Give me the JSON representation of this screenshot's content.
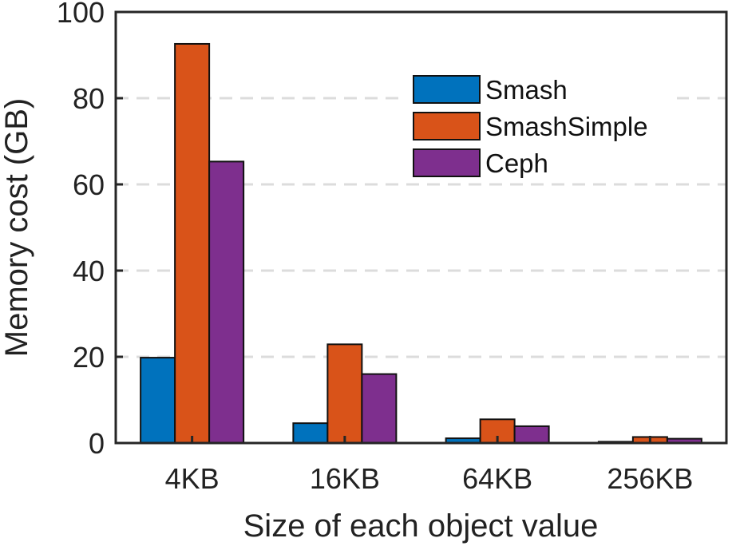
{
  "chart_data": {
    "type": "bar",
    "title": "",
    "xlabel": "Size of each object value",
    "ylabel": "Memory cost (GB)",
    "categories": [
      "4KB",
      "16KB",
      "64KB",
      "256KB"
    ],
    "ylim": [
      0,
      100
    ],
    "yticks": [
      0,
      20,
      40,
      60,
      80,
      100
    ],
    "grid": true,
    "legend_position": "top-right",
    "series": [
      {
        "name": "Smash",
        "color": "#0072BD",
        "values": [
          19.8,
          4.6,
          1.1,
          0.3
        ]
      },
      {
        "name": "SmashSimple",
        "color": "#D95319",
        "values": [
          92.6,
          22.9,
          5.5,
          1.4
        ]
      },
      {
        "name": "Ceph",
        "color": "#7E2F8E",
        "values": [
          65.3,
          16.0,
          3.9,
          1.0
        ]
      }
    ]
  }
}
